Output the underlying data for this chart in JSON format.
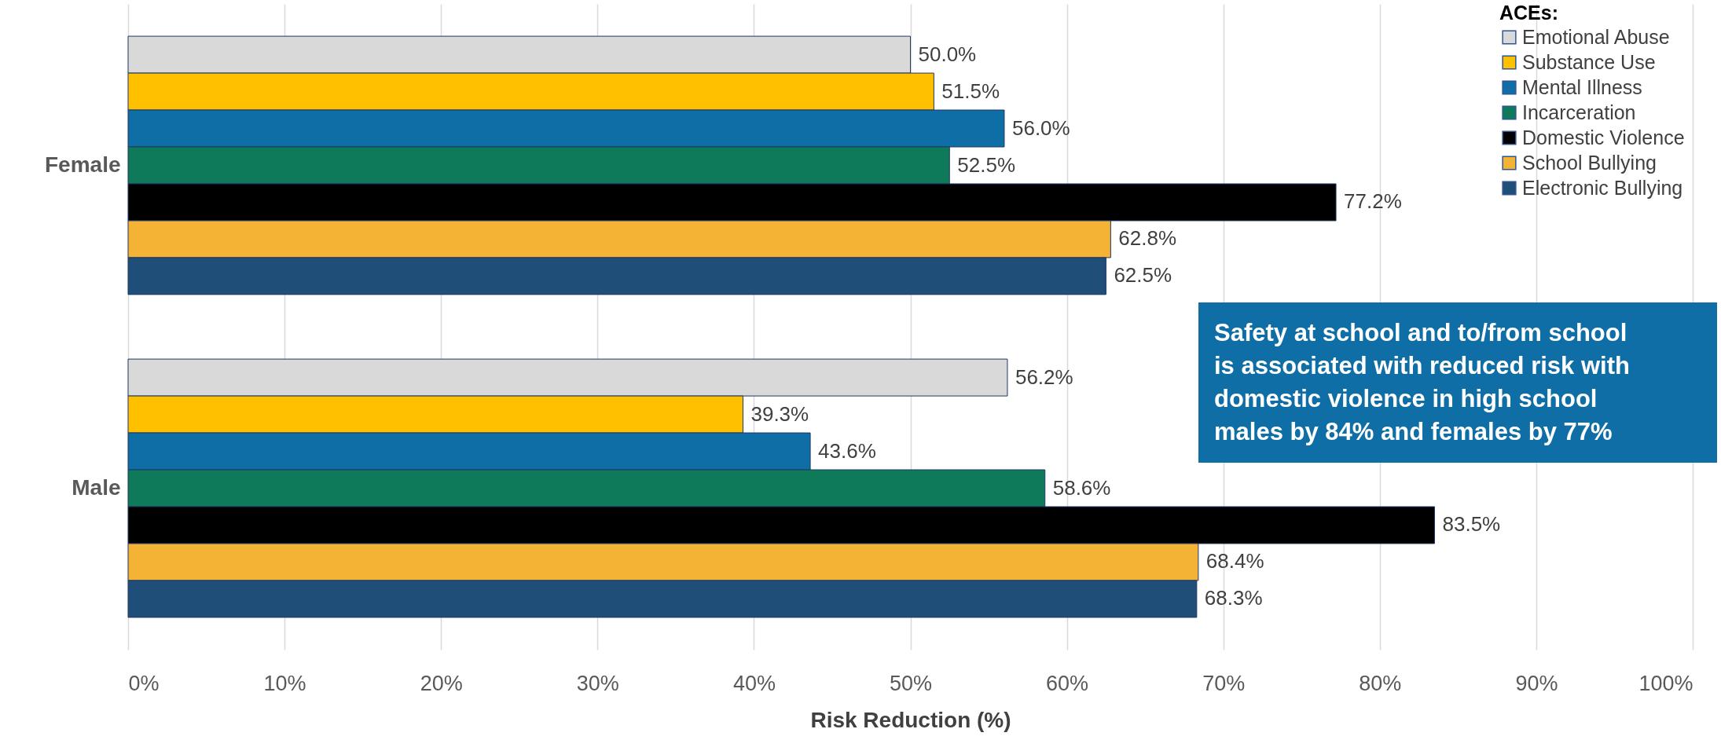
{
  "chart_data": {
    "type": "bar",
    "orientation": "horizontal",
    "categories": [
      "Female",
      "Male"
    ],
    "series": [
      {
        "name": "Emotional Abuse",
        "color": "#d9d9d9",
        "values": [
          50.0,
          56.2
        ],
        "value_labels": [
          "50.0%",
          "56.2%"
        ]
      },
      {
        "name": "Substance Use",
        "color": "#ffc000",
        "values": [
          51.5,
          39.3
        ],
        "value_labels": [
          "51.5%",
          "39.3%"
        ]
      },
      {
        "name": "Mental Illness",
        "color": "#0e6ea5",
        "values": [
          56.0,
          43.6
        ],
        "value_labels": [
          "56.0%",
          "43.6%"
        ]
      },
      {
        "name": "Incarceration",
        "color": "#0e7a5a",
        "values": [
          52.5,
          58.6
        ],
        "value_labels": [
          "52.5%",
          "58.6%"
        ]
      },
      {
        "name": "Domestic Violence",
        "color": "#000000",
        "values": [
          77.2,
          83.5
        ],
        "value_labels": [
          "77.2%",
          "83.5%"
        ]
      },
      {
        "name": "School Bullying",
        "color": "#f5b335",
        "values": [
          62.8,
          68.4
        ],
        "value_labels": [
          "62.8%",
          "68.4%"
        ]
      },
      {
        "name": "Electronic Bullying",
        "color": "#1f4e79",
        "values": [
          62.5,
          68.3
        ],
        "value_labels": [
          "62.5%",
          "68.3%"
        ]
      }
    ],
    "xlim": [
      0,
      100
    ],
    "xticks": [
      {
        "value": 0,
        "label": "0%"
      },
      {
        "value": 10,
        "label": "10%"
      },
      {
        "value": 20,
        "label": "20%"
      },
      {
        "value": 30,
        "label": "30%"
      },
      {
        "value": 40,
        "label": "40%"
      },
      {
        "value": 50,
        "label": "50%"
      },
      {
        "value": 60,
        "label": "60%"
      },
      {
        "value": 70,
        "label": "70%"
      },
      {
        "value": 80,
        "label": "80%"
      },
      {
        "value": 90,
        "label": "90%"
      },
      {
        "value": 100,
        "label": "100%"
      }
    ],
    "xlabel": "Risk Reduction (%)",
    "legend_title": "ACEs:",
    "legend": "top right",
    "grid": "x",
    "annotations": [
      "Safety at school and to/from school\nis associated with reduced risk with\ndomestic violence in high school\nmales by 84% and females by 77%"
    ]
  }
}
